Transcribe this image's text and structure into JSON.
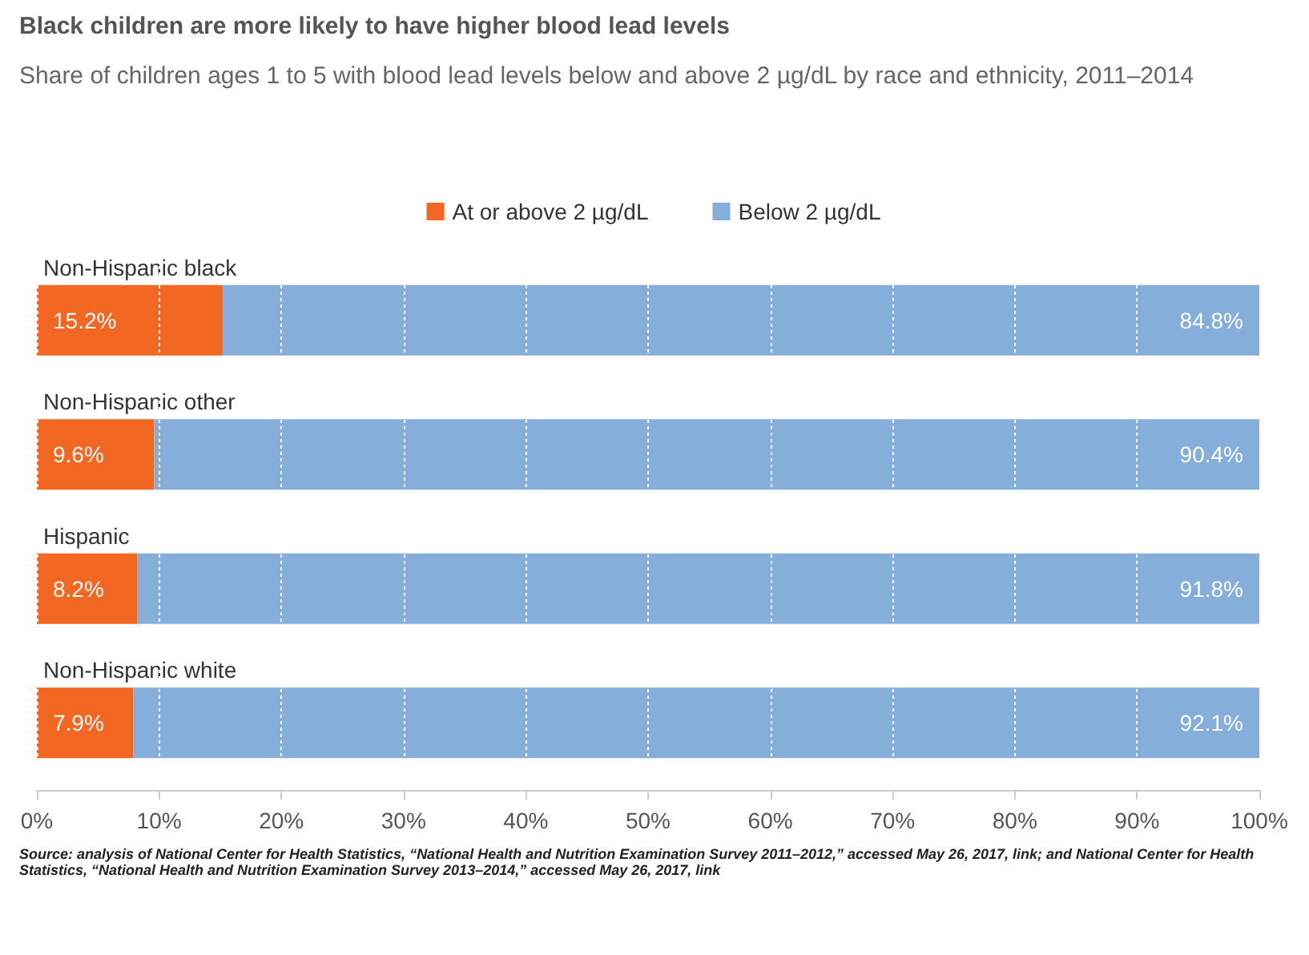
{
  "chart_data": {
    "type": "bar",
    "orientation": "horizontal",
    "stacked": true,
    "title": "Black children are more likely to have higher blood lead levels",
    "subtitle": "Share of children ages 1 to 5 with blood lead levels below and above 2 µg/dL by race and ethnicity, 2011–2014",
    "categories": [
      "Non-Hispanic black",
      "Non-Hispanic other",
      "Hispanic",
      "Non-Hispanic white"
    ],
    "series": [
      {
        "name": "At or above 2 µg/dL",
        "color": "#f26722",
        "values": [
          15.2,
          9.6,
          8.2,
          7.9
        ],
        "value_labels": [
          "15.2%",
          "9.6%",
          "8.2%",
          "7.9%"
        ]
      },
      {
        "name": "Below 2 µg/dL",
        "color": "#85aedb",
        "values": [
          84.8,
          90.4,
          91.8,
          92.1
        ],
        "value_labels": [
          "84.8%",
          "90.4%",
          "91.8%",
          "92.1%"
        ]
      }
    ],
    "xlim": [
      0,
      100
    ],
    "xticks": [
      {
        "value": 0,
        "label": "0%"
      },
      {
        "value": 10,
        "label": "10%"
      },
      {
        "value": 20,
        "label": "20%"
      },
      {
        "value": 30,
        "label": "30%"
      },
      {
        "value": 40,
        "label": "40%"
      },
      {
        "value": 50,
        "label": "50%"
      },
      {
        "value": 60,
        "label": "60%"
      },
      {
        "value": 70,
        "label": "70%"
      },
      {
        "value": 80,
        "label": "80%"
      },
      {
        "value": 90,
        "label": "90%"
      },
      {
        "value": 100,
        "label": "100%"
      }
    ],
    "grid": "x",
    "legend": "top",
    "annotations": [
      "Source: analysis of National Center for Health Statistics, “National Health and Nutrition Examination Survey 2011–2012,” accessed May 26, 2017, link; and National Center for Health Statistics, “National Health and Nutrition Examination Survey 2013–2014,” accessed May 26, 2017, link"
    ]
  }
}
